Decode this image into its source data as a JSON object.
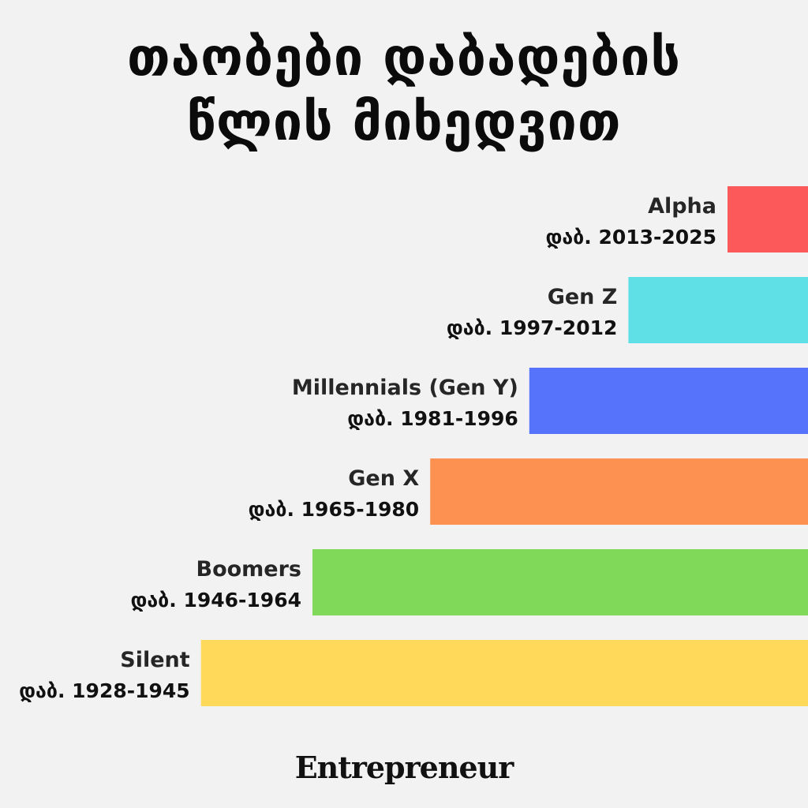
{
  "title_lines": [
    "თაობები დაბადების",
    "წლის მიხედვით"
  ],
  "brand": "Entrepreneur",
  "colors": {
    "background": "#f2f2f2",
    "alpha": "#fc5a5a",
    "genz": "#5ee0e6",
    "millennials": "#5573fb",
    "genx": "#fd9152",
    "boomers": "#80d958",
    "silent": "#fed95a"
  },
  "chart_data": {
    "type": "bar",
    "orientation": "horizontal",
    "title": "თაობები დაბადების წლის მიხედვით",
    "xlim": [
      1920,
      2025
    ],
    "series": [
      {
        "name": "Alpha",
        "label": "დაბ. 2013-2025",
        "start": 2013,
        "end": 2025,
        "color": "#fc5a5a"
      },
      {
        "name": "Gen Z",
        "label": "დაბ. 1997-2012",
        "start": 1997,
        "end": 2012,
        "color": "#5ee0e6"
      },
      {
        "name": "Millennials (Gen Y)",
        "label": "დაბ. 1981-1996",
        "start": 1981,
        "end": 1996,
        "color": "#5573fb"
      },
      {
        "name": "Gen X",
        "label": "დაბ. 1965-1980",
        "start": 1965,
        "end": 1980,
        "color": "#fd9152"
      },
      {
        "name": "Boomers",
        "label": "დაბ. 1946-1964",
        "start": 1946,
        "end": 1964,
        "color": "#80d958"
      },
      {
        "name": "Silent",
        "label": "დაბ. 1928-1945",
        "start": 1928,
        "end": 1945,
        "color": "#fed95a"
      }
    ]
  }
}
